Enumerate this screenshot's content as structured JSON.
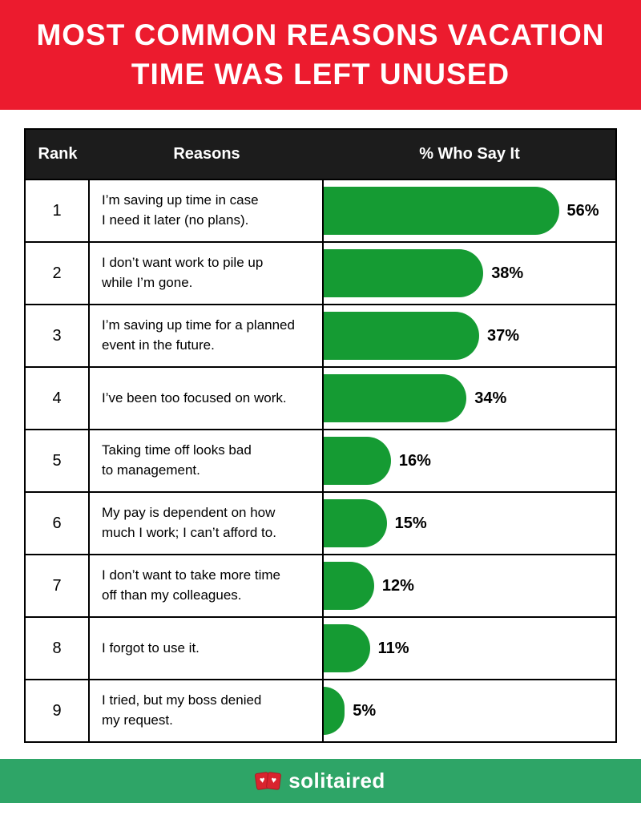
{
  "banner": {
    "title_line1": "MOST COMMON REASONS VACATION",
    "title_line2": "TIME WAS LEFT UNUSED",
    "bg_color": "#ec1b2e"
  },
  "chart_data": {
    "type": "bar",
    "title": "Most Common Reasons Vacation Time Was Left Unused",
    "columns": [
      "Rank",
      "Reasons",
      "% Who Say It"
    ],
    "xlabel": "",
    "ylabel": "% Who Say It",
    "xlim": [
      0,
      56
    ],
    "bar_color": "#159b33",
    "header_bg": "#1c1c1c",
    "rows": [
      {
        "rank": "1",
        "reason": "I’m saving up time in case\nI need it later (no plans).",
        "percent": 56,
        "label": "56%"
      },
      {
        "rank": "2",
        "reason": "I don’t want work to pile up\nwhile I’m gone.",
        "percent": 38,
        "label": "38%"
      },
      {
        "rank": "3",
        "reason": "I’m saving up time for a planned\nevent in the future.",
        "percent": 37,
        "label": "37%"
      },
      {
        "rank": "4",
        "reason": "I’ve been too focused on work.",
        "percent": 34,
        "label": "34%"
      },
      {
        "rank": "5",
        "reason": "Taking time off looks bad\nto management.",
        "percent": 16,
        "label": "16%"
      },
      {
        "rank": "6",
        "reason": "My pay is dependent on how\nmuch I work; I can’t afford to.",
        "percent": 15,
        "label": "15%"
      },
      {
        "rank": "7",
        "reason": "I don’t want to take more time\noff than my colleagues.",
        "percent": 12,
        "label": "12%"
      },
      {
        "rank": "8",
        "reason": "I forgot to use it.",
        "percent": 11,
        "label": "11%"
      },
      {
        "rank": "9",
        "reason": "I tried, but my boss denied\nmy request.",
        "percent": 5,
        "label": "5%"
      }
    ]
  },
  "footer": {
    "brand": "solitaired",
    "bg_color": "#2ea567",
    "card_glyph": "♥"
  }
}
